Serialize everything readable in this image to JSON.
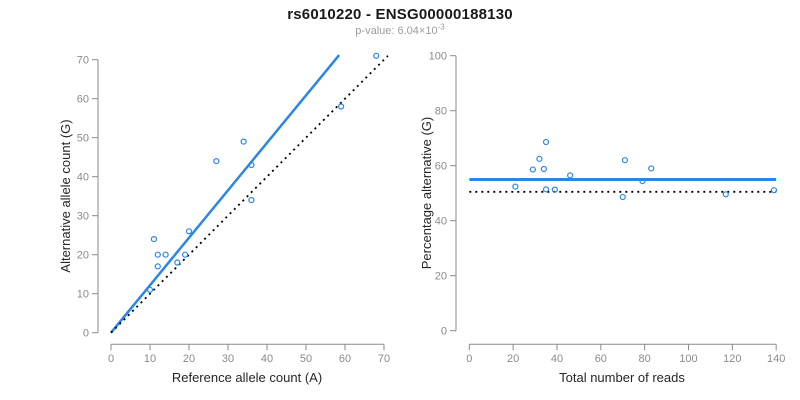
{
  "header": {
    "title": "rs6010220 - ENSG00000188130",
    "pvalue_base": "p-value: 6.04×10",
    "pvalue_exponent": "-3"
  },
  "colors": {
    "accent_blue": "#2b87e3",
    "point_blue": "#2b87e3",
    "reference_black": "#000000",
    "axis_gray": "#8a8a8a",
    "tick_label_gray": "#8a8a8a",
    "axis_title_dark": "#262626",
    "title_black": "#1a1a1a",
    "subtitle_gray": "#9b9b9b",
    "background": "#ffffff"
  },
  "chart_data": [
    {
      "type": "scatter",
      "xlabel": "Reference allele count (A)",
      "ylabel": "Alternative allele count (G)",
      "xlim": [
        0,
        70
      ],
      "ylim": [
        0,
        70
      ],
      "xticks": [
        0,
        10,
        20,
        30,
        40,
        50,
        60,
        70
      ],
      "yticks": [
        0,
        10,
        20,
        30,
        40,
        50,
        60,
        70
      ],
      "grid": false,
      "legend": null,
      "point_style": "open-circle",
      "points": [
        [
          10,
          11
        ],
        [
          11,
          24
        ],
        [
          12,
          17
        ],
        [
          12,
          20
        ],
        [
          14,
          20
        ],
        [
          17,
          18
        ],
        [
          19,
          20
        ],
        [
          20,
          26
        ],
        [
          27,
          44
        ],
        [
          34,
          49
        ],
        [
          36,
          34
        ],
        [
          36,
          43
        ],
        [
          59,
          58
        ],
        [
          68,
          71
        ]
      ],
      "lines": [
        {
          "name": "fit-line",
          "x1": 0,
          "y1": 0,
          "x2": 58.5,
          "y2": 71.2,
          "style": "solid",
          "color": "#2b87e3",
          "width": 2.5
        },
        {
          "name": "identity-line",
          "x1": 0,
          "y1": 0,
          "x2": 71,
          "y2": 71,
          "style": "dotted",
          "color": "#000000",
          "width": 1.8
        }
      ]
    },
    {
      "type": "scatter",
      "xlabel": "Total number of reads",
      "ylabel": "Percentage alternative (G)",
      "xlim": [
        0,
        140
      ],
      "ylim": [
        0,
        100
      ],
      "xticks": [
        0,
        20,
        40,
        60,
        80,
        100,
        120,
        140
      ],
      "yticks": [
        0,
        20,
        40,
        60,
        80,
        100
      ],
      "grid": false,
      "legend": null,
      "point_style": "open-circle",
      "points": [
        [
          21,
          52.4
        ],
        [
          29,
          58.6
        ],
        [
          32,
          62.5
        ],
        [
          34,
          58.8
        ],
        [
          35,
          68.6
        ],
        [
          35,
          51.4
        ],
        [
          39,
          51.3
        ],
        [
          46,
          56.5
        ],
        [
          70,
          48.6
        ],
        [
          71,
          62.0
        ],
        [
          79,
          54.4
        ],
        [
          83,
          59.0
        ],
        [
          117,
          49.6
        ],
        [
          139,
          51.1
        ]
      ],
      "lines": [
        {
          "name": "mean-percentage-line",
          "x1": 0,
          "y1": 55,
          "x2": 140,
          "y2": 55,
          "style": "solid",
          "color": "#2b87e3",
          "width": 3
        },
        {
          "name": "fifty-percent-line",
          "x1": 0,
          "y1": 50.5,
          "x2": 140,
          "y2": 50.5,
          "style": "dotted",
          "color": "#000000",
          "width": 1.8
        }
      ]
    }
  ]
}
